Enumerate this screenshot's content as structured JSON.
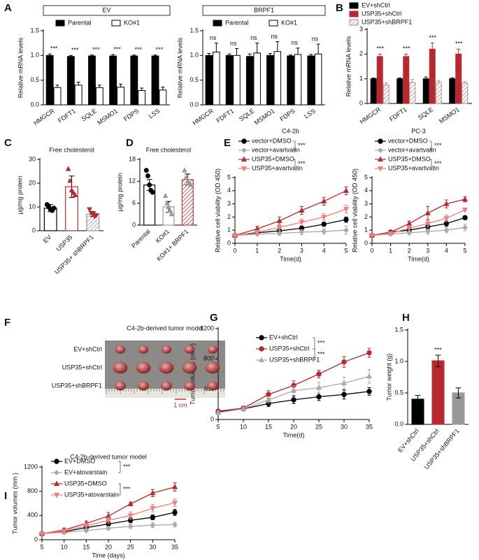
{
  "chart_data": [
    {
      "panel": "A",
      "type": "bar",
      "title": "EV",
      "ylabel": "Relative mRNA levels",
      "categories": [
        "HMGCR",
        "FDFT1",
        "SQLE",
        "MSMO1",
        "FDPS",
        "LSS"
      ],
      "series": [
        {
          "name": "Parental",
          "color": "#000000",
          "style": "solid",
          "values": [
            1,
            0.98,
            0.99,
            0.99,
            0.99,
            0.99
          ],
          "errors": [
            0.03,
            0.02,
            0.02,
            0.03,
            0.02,
            0.02
          ]
        },
        {
          "name": "KO#1",
          "color": "#000000",
          "style": "outline",
          "values": [
            0.35,
            0.4,
            0.35,
            0.36,
            0.29,
            0.3
          ],
          "errors": [
            0.05,
            0.06,
            0.05,
            0.06,
            0.05,
            0.06
          ]
        }
      ],
      "annotations": [
        "***",
        "***",
        "***",
        "***",
        "***",
        "***"
      ],
      "ylim": [
        0,
        1.5
      ],
      "yticks": [
        {
          "value": 0,
          "label": "0.0"
        },
        0.5,
        {
          "value": 1,
          "label": "1.0"
        },
        1.5
      ],
      "legend": "top"
    },
    {
      "type": "bar",
      "title": "BRPF1",
      "ylabel": "Relative mRNA levels",
      "categories": [
        "HMGCR",
        "FDFT1",
        "SQLE",
        "MSMO1",
        "FDPS",
        "LSS"
      ],
      "series": [
        {
          "name": "Parental",
          "color": "#000000",
          "style": "solid",
          "values": [
            1,
            1,
            0.98,
            1,
            0.99,
            0.99
          ],
          "errors": [
            0.04,
            0.03,
            0.05,
            0.04,
            0.02,
            0.03
          ]
        },
        {
          "name": "KO#1",
          "color": "#000000",
          "style": "outline",
          "values": [
            1.07,
            1,
            1.05,
            1.08,
            1.02,
            1.03
          ],
          "errors": [
            0.18,
            0.14,
            0.2,
            0.2,
            0.13,
            0.2
          ]
        }
      ],
      "annotations": [
        "ns",
        "ns",
        "ns",
        "ns",
        "ns",
        "ns"
      ],
      "ylim": [
        0,
        1.5
      ],
      "yticks": [
        {
          "value": 0,
          "label": "0.0"
        },
        0.5,
        {
          "value": 1,
          "label": "1.0"
        },
        1.5
      ],
      "legend": "top"
    },
    {
      "panel": "B",
      "type": "bar",
      "ylabel": "Relative mRNA levels",
      "categories": [
        "HMGCR",
        "FDFT1",
        "SQLE",
        "MSMO1"
      ],
      "series": [
        {
          "name": "EV+shCtrl",
          "color": "#000000",
          "style": "solid",
          "values": [
            1,
            1,
            1,
            1
          ],
          "errors": [
            0.03,
            0.03,
            0.07,
            0.04
          ]
        },
        {
          "name": "USP35+shCtrl",
          "color": "#b8282e",
          "style": "solid",
          "values": [
            1.9,
            1.9,
            2.2,
            2
          ],
          "errors": [
            0.1,
            0.1,
            0.25,
            0.2
          ]
        },
        {
          "name": "USP35+shBRPF1",
          "color": "#b58b8b",
          "style": "hatch",
          "values": [
            0.75,
            0.85,
            0.85,
            0.82
          ],
          "errors": [
            0.08,
            0.12,
            0.08,
            0.07
          ]
        }
      ],
      "annotations": [
        "***",
        "***",
        "***",
        "***"
      ],
      "ylim": [
        0,
        3
      ],
      "yticks": [
        0,
        1,
        2,
        3
      ],
      "legend": "upper left"
    },
    {
      "panel": "C",
      "type": "bar",
      "title": "Free cholesterol",
      "ylabel": "µg/mg protein",
      "categories": [
        "EV",
        "USP35",
        "USP35+ shBRPF1"
      ],
      "values": [
        9.5,
        18.5,
        7
      ],
      "errors": [
        1.5,
        4.5,
        1
      ],
      "colors": [
        "#000000",
        "#b8282e",
        "#999999"
      ],
      "styles": [
        "outline",
        "outline",
        "hatch"
      ],
      "points": [
        [
          11,
          10,
          9,
          8.5,
          9.5
        ],
        [
          26,
          21,
          17,
          16,
          15
        ],
        [
          9,
          7.5,
          7,
          6,
          6.5
        ]
      ],
      "markers": [
        "circle",
        "triangle",
        "triangle-down"
      ],
      "point_colors": [
        "#000000",
        "#b8282e",
        "#b8282e"
      ],
      "ylim": [
        0,
        30
      ],
      "yticks": [
        0,
        10,
        20,
        30
      ]
    },
    {
      "panel": "D",
      "type": "bar",
      "title": "Free cholesterol",
      "ylabel": "µg/mg protein",
      "categories": [
        "Parental",
        "KO#1",
        "KO#1+ BRPF1"
      ],
      "values": [
        11,
        5,
        12.5
      ],
      "errors": [
        1.5,
        1.5,
        1.5
      ],
      "colors": [
        "#000000",
        "#999999",
        "#c0393b"
      ],
      "styles": [
        "outline",
        "outline",
        "hatch"
      ],
      "points": [
        [
          15,
          13.5,
          11,
          9.5,
          9
        ],
        [
          8,
          6,
          5,
          4,
          3
        ],
        [
          15,
          13,
          12,
          11.5,
          11
        ]
      ],
      "markers": [
        "circle",
        "triangle",
        "triangle"
      ],
      "point_colors": [
        "#000000",
        "#999999",
        "#999999"
      ],
      "ylim": [
        0,
        18
      ],
      "yticks": [
        0,
        6,
        12,
        18
      ]
    },
    {
      "panel": "E",
      "type": "line",
      "title": "C4-2b",
      "xlabel": "Time(d)",
      "ylabel": "Relative cell viability (OD 450)",
      "x": [
        0,
        1,
        2,
        3,
        4,
        5
      ],
      "series": [
        {
          "name": "vector+DMSO",
          "color": "#000000",
          "marker": "circle",
          "values": [
            0.6,
            0.8,
            0.95,
            1.15,
            1.45,
            1.8
          ],
          "errors": [
            0.05,
            0.1,
            0.1,
            0.15,
            0.15,
            0.2
          ]
        },
        {
          "name": "vector+avartvatin",
          "color": "#aaaaaa",
          "marker": "diamond",
          "values": [
            0.6,
            0.7,
            0.75,
            0.85,
            0.9,
            1
          ],
          "errors": [
            0.05,
            0.1,
            0.15,
            0.2,
            0.2,
            0.3
          ]
        },
        {
          "name": "USP35+DMSO",
          "color": "#b8282e",
          "marker": "triangle",
          "values": [
            0.6,
            1.1,
            1.7,
            2.5,
            3.2,
            4
          ],
          "errors": [
            0.05,
            0.2,
            0.3,
            0.3,
            0.3,
            0.3
          ]
        },
        {
          "name": "USP35+avartvatin",
          "color": "#f08080",
          "marker": "triangle-down",
          "values": [
            0.6,
            0.85,
            1.2,
            1.6,
            2,
            2.6
          ],
          "errors": [
            0.05,
            0.15,
            0.2,
            0.25,
            0.25,
            0.3
          ]
        }
      ],
      "annotations": [
        "***",
        "***"
      ],
      "xlim": [
        0,
        5
      ],
      "xticks": [
        0,
        1,
        2,
        3,
        4,
        5
      ],
      "ylim": [
        0,
        5
      ],
      "yticks": [
        0,
        1,
        2,
        3,
        4,
        5
      ],
      "legend": "upper left"
    },
    {
      "type": "line",
      "title": "PC-3",
      "xlabel": "Time(d)",
      "ylabel": "Relative cell viability (OD 450)",
      "x": [
        0,
        1,
        2,
        3,
        4,
        5
      ],
      "series": [
        {
          "name": "vector+DMSO",
          "color": "#000000",
          "marker": "circle",
          "values": [
            0.6,
            0.85,
            1,
            1.25,
            1.5,
            1.95
          ],
          "errors": [
            0.05,
            0.1,
            0.15,
            0.2,
            0.2,
            0.15
          ]
        },
        {
          "name": "vector+avartvatin",
          "color": "#aaaaaa",
          "marker": "diamond",
          "values": [
            0.6,
            0.7,
            0.8,
            0.9,
            1,
            1.2
          ],
          "errors": [
            0.05,
            0.1,
            0.15,
            0.2,
            0.2,
            0.25
          ]
        },
        {
          "name": "USP35+DMSO",
          "color": "#b8282e",
          "marker": "triangle",
          "values": [
            0.6,
            0.85,
            1.5,
            2.3,
            3,
            3.35
          ],
          "errors": [
            0.05,
            0.1,
            0.2,
            0.5,
            0.3,
            0.2
          ]
        },
        {
          "name": "USP35+avartvatin",
          "color": "#f08080",
          "marker": "triangle-down",
          "values": [
            0.6,
            0.75,
            1.15,
            1.5,
            1.9,
            2.55
          ],
          "errors": [
            0.05,
            0.1,
            0.2,
            0.25,
            0.25,
            0.1
          ]
        }
      ],
      "annotations": [
        "***",
        "***"
      ],
      "xlim": [
        0,
        5
      ],
      "xticks": [
        0,
        1,
        2,
        3,
        4,
        5
      ],
      "ylim": [
        0,
        5
      ],
      "yticks": [
        0,
        1,
        2,
        3,
        4,
        5
      ],
      "legend": "upper left"
    },
    {
      "panel": "G",
      "type": "line",
      "xlabel": "Time(d)",
      "ylabel": "Tumor volumes (mm³)",
      "x": [
        5,
        10,
        15,
        20,
        25,
        30,
        35
      ],
      "series": [
        {
          "name": "EV+shCtrl",
          "color": "#000000",
          "marker": "circle",
          "values": [
            100,
            140,
            210,
            260,
            300,
            330,
            370
          ],
          "errors": [
            20,
            20,
            40,
            50,
            50,
            60,
            50
          ]
        },
        {
          "name": "USP35+shCtrl",
          "color": "#b8282e",
          "marker": "circle",
          "values": [
            110,
            150,
            330,
            450,
            600,
            760,
            880
          ],
          "errors": [
            20,
            25,
            50,
            60,
            50,
            70,
            60
          ]
        },
        {
          "name": "USP35+shBRPF1",
          "color": "#aaaaaa",
          "marker": "triangle",
          "values": [
            90,
            140,
            260,
            380,
            420,
            480,
            570
          ],
          "errors": [
            20,
            25,
            40,
            60,
            70,
            80,
            90
          ]
        }
      ],
      "annotations": [
        "***",
        "***"
      ],
      "xlim": [
        5,
        35
      ],
      "xticks": [
        5,
        10,
        15,
        20,
        25,
        30,
        35
      ],
      "ylim": [
        0,
        1200
      ],
      "yticks": [
        0,
        400,
        800,
        1200
      ],
      "legend": "upper left"
    },
    {
      "panel": "H",
      "type": "bar",
      "ylabel": "Tumor weight (g)",
      "categories": [
        "EV+shCtrl",
        "USP35+shCtrl",
        "USP35+shBRPF1"
      ],
      "values": [
        0.4,
        1.01,
        0.5
      ],
      "errors": [
        0.06,
        0.09,
        0.08
      ],
      "colors": [
        "#000000",
        "#b8282e",
        "#999999"
      ],
      "styles": [
        "solid",
        "solid",
        "solid"
      ],
      "annotation": "***",
      "ylim": [
        0,
        1.5
      ],
      "yticks": [
        {
          "value": 0,
          "label": "0.0"
        },
        0.5,
        {
          "value": 1,
          "label": "1.0"
        },
        1.5
      ]
    },
    {
      "panel": "I",
      "type": "line",
      "title": "C4-2b-derived tumor model",
      "xlabel": "Time (days)",
      "ylabel": "Tumor volumes (mm )",
      "x": [
        5,
        10,
        15,
        20,
        25,
        30,
        35
      ],
      "series": [
        {
          "name": "EV+DMSO",
          "color": "#000000",
          "marker": "circle",
          "values": [
            100,
            130,
            200,
            260,
            320,
            370,
            450
          ],
          "errors": [
            20,
            20,
            30,
            40,
            40,
            40,
            50
          ]
        },
        {
          "name": "EV+atovarstain",
          "color": "#aaaaaa",
          "marker": "diamond",
          "values": [
            100,
            120,
            150,
            190,
            220,
            240,
            250
          ],
          "errors": [
            20,
            20,
            20,
            30,
            30,
            40,
            40
          ]
        },
        {
          "name": "USP35+DMSO",
          "color": "#b8282e",
          "marker": "triangle",
          "values": [
            100,
            160,
            270,
            390,
            590,
            770,
            870
          ],
          "errors": [
            20,
            30,
            40,
            60,
            30,
            60,
            70
          ]
        },
        {
          "name": "USP35+atovarstain",
          "color": "#f08080",
          "marker": "triangle-down",
          "values": [
            100,
            140,
            230,
            320,
            400,
            520,
            610
          ],
          "errors": [
            20,
            20,
            40,
            50,
            60,
            60,
            60
          ]
        }
      ],
      "annotations": [
        "***",
        "***"
      ],
      "xlim": [
        5,
        35
      ],
      "xticks": [
        5,
        10,
        15,
        20,
        25,
        30,
        35
      ],
      "ylim": [
        0,
        1200
      ],
      "yticks": [
        0,
        400,
        800,
        1200
      ],
      "legend": "upper left"
    }
  ],
  "photo": {
    "panel": "F",
    "title": "C4-2b-derived tumor model",
    "rows": [
      "EV+shCtrl",
      "USP35+shCtrl",
      "USP35+shBRPF1"
    ],
    "scale": "1 cm"
  }
}
